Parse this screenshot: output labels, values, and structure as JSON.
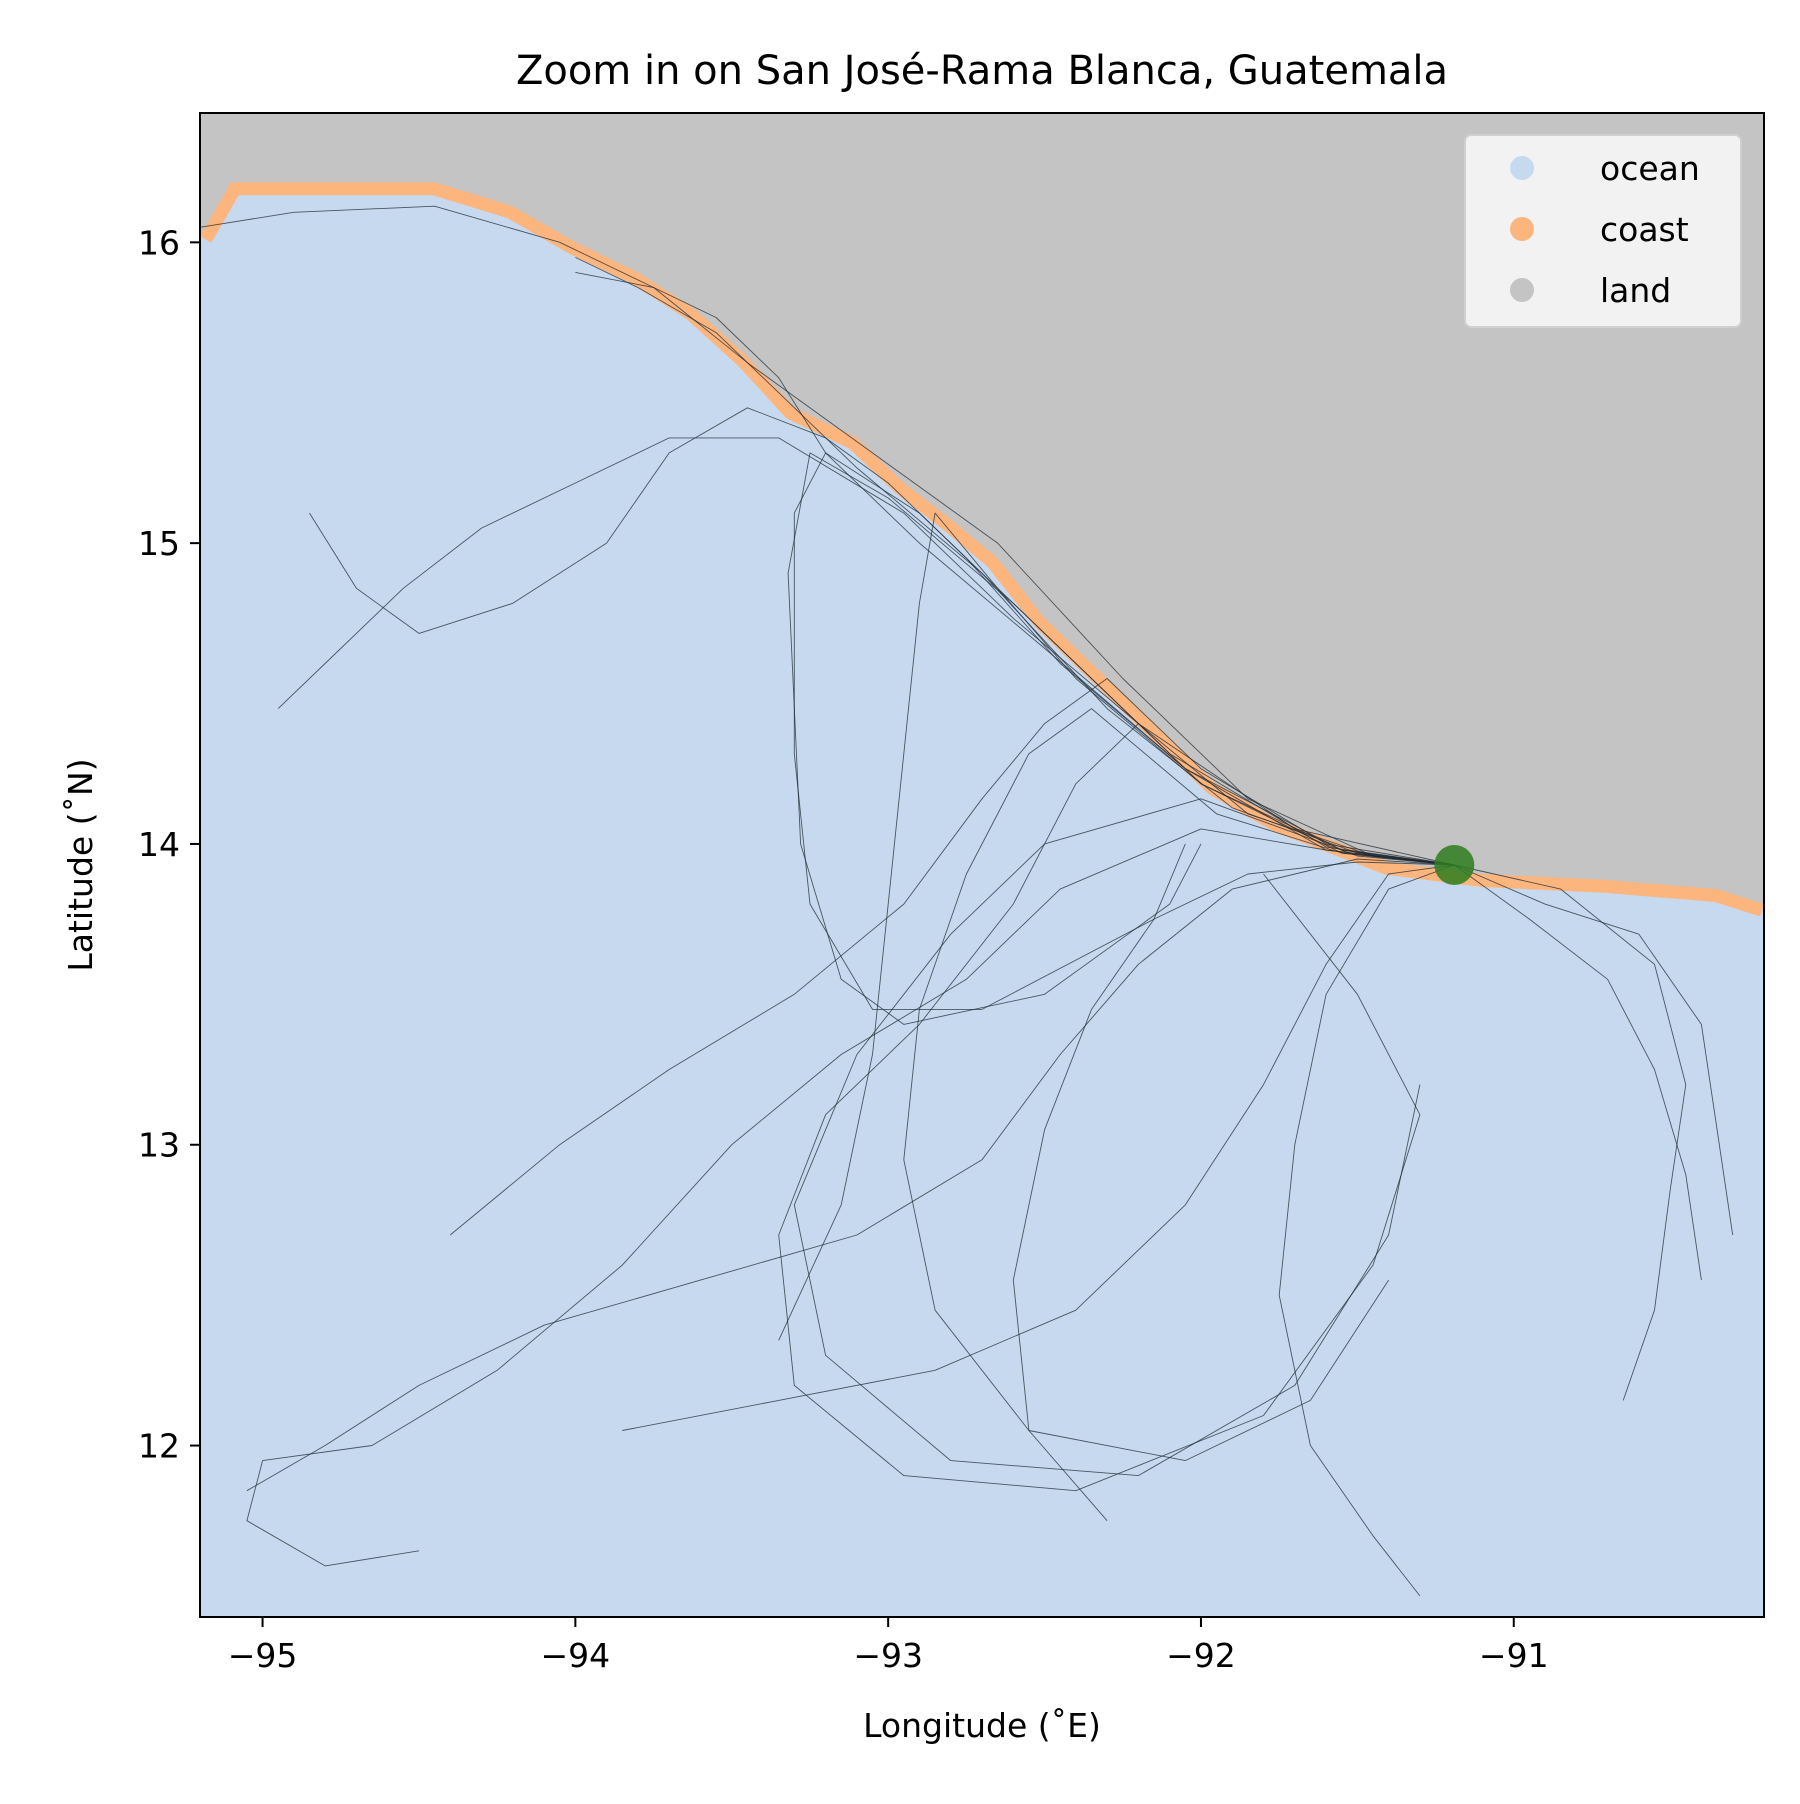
{
  "chart_data": {
    "type": "map",
    "title": "Zoom in on San José-Rama Blanca, Guatemala",
    "xlabel": "Longitude (˚E)",
    "ylabel": "Latitude (˚N)",
    "xlim": [
      -95.2,
      -90.2
    ],
    "ylim": [
      11.43,
      16.43
    ],
    "xticks": [
      -95,
      -94,
      -93,
      -92,
      -91
    ],
    "xtick_labels": [
      "−95",
      "−94",
      "−93",
      "−92",
      "−91"
    ],
    "yticks": [
      12,
      13,
      14,
      15,
      16
    ],
    "ytick_labels": [
      "12",
      "13",
      "14",
      "15",
      "16"
    ],
    "colors": {
      "ocean": "#c6d9ee",
      "coast": "#fdb57e",
      "land": "#c4c4c4",
      "trajectory": "#1f2a33",
      "marker": "#2e7d1e",
      "legend_bg": "#f2f2f2"
    },
    "legend": {
      "placement": "top-right",
      "entries": [
        {
          "label": "ocean",
          "color": "#c6d9ee"
        },
        {
          "label": "coast",
          "color": "#fdb57e"
        },
        {
          "label": "land",
          "color": "#c4c4c4"
        }
      ]
    },
    "coastline": [
      [
        -95.2,
        16.02
      ],
      [
        -95.1,
        16.2
      ],
      [
        -94.45,
        16.2
      ],
      [
        -94.2,
        16.12
      ],
      [
        -94.0,
        16.0
      ],
      [
        -93.8,
        15.9
      ],
      [
        -93.62,
        15.78
      ],
      [
        -93.45,
        15.62
      ],
      [
        -93.3,
        15.45
      ],
      [
        -93.1,
        15.35
      ],
      [
        -92.95,
        15.2
      ],
      [
        -92.8,
        15.08
      ],
      [
        -92.65,
        14.95
      ],
      [
        -92.5,
        14.75
      ],
      [
        -92.4,
        14.65
      ],
      [
        -92.25,
        14.5
      ],
      [
        -92.1,
        14.35
      ],
      [
        -91.95,
        14.2
      ],
      [
        -91.75,
        14.08
      ],
      [
        -91.55,
        14.0
      ],
      [
        -91.4,
        13.94
      ],
      [
        -91.1,
        13.9
      ],
      [
        -90.7,
        13.88
      ],
      [
        -90.35,
        13.85
      ],
      [
        -90.2,
        13.8
      ]
    ],
    "site": {
      "lon": -91.19,
      "lat": 13.93
    },
    "trajectories": [
      [
        [
          -91.19,
          13.93
        ],
        [
          -91.5,
          13.97
        ],
        [
          -91.9,
          14.12
        ],
        [
          -92.3,
          14.45
        ],
        [
          -92.7,
          14.9
        ],
        [
          -93.1,
          15.25
        ],
        [
          -93.35,
          15.5
        ],
        [
          -93.55,
          15.7
        ],
        [
          -93.8,
          15.85
        ],
        [
          -94.0,
          15.95
        ]
      ],
      [
        [
          -91.19,
          13.93
        ],
        [
          -91.55,
          13.98
        ],
        [
          -92.0,
          14.2
        ],
        [
          -92.5,
          14.7
        ],
        [
          -92.9,
          15.1
        ],
        [
          -93.2,
          15.3
        ],
        [
          -93.3,
          15.1
        ],
        [
          -93.3,
          14.3
        ],
        [
          -93.25,
          13.8
        ],
        [
          -93.05,
          13.45
        ],
        [
          -92.7,
          13.45
        ],
        [
          -92.15,
          13.75
        ],
        [
          -92.05,
          14.0
        ]
      ],
      [
        [
          -91.19,
          13.93
        ],
        [
          -91.6,
          13.99
        ],
        [
          -92.1,
          14.3
        ],
        [
          -92.6,
          14.8
        ],
        [
          -93.0,
          15.15
        ],
        [
          -93.25,
          15.3
        ],
        [
          -93.32,
          14.9
        ],
        [
          -93.28,
          14.0
        ],
        [
          -93.15,
          13.55
        ],
        [
          -92.95,
          13.4
        ],
        [
          -92.5,
          13.5
        ],
        [
          -92.1,
          13.8
        ],
        [
          -92.0,
          14.0
        ]
      ],
      [
        [
          -91.19,
          13.93
        ],
        [
          -91.45,
          13.96
        ],
        [
          -91.85,
          14.1
        ],
        [
          -92.2,
          14.4
        ],
        [
          -92.4,
          14.2
        ],
        [
          -92.6,
          13.8
        ],
        [
          -92.9,
          13.4
        ],
        [
          -93.2,
          13.1
        ],
        [
          -93.35,
          12.7
        ],
        [
          -93.3,
          12.2
        ],
        [
          -92.95,
          11.9
        ],
        [
          -92.4,
          11.85
        ],
        [
          -91.8,
          12.1
        ],
        [
          -91.45,
          12.6
        ],
        [
          -91.3,
          13.1
        ],
        [
          -91.5,
          13.5
        ],
        [
          -91.8,
          13.9
        ]
      ],
      [
        [
          -91.19,
          13.93
        ],
        [
          -91.5,
          13.96
        ],
        [
          -92.0,
          14.15
        ],
        [
          -92.5,
          14.0
        ],
        [
          -92.8,
          13.7
        ],
        [
          -93.1,
          13.3
        ],
        [
          -93.3,
          12.8
        ],
        [
          -93.2,
          12.3
        ],
        [
          -92.8,
          11.95
        ],
        [
          -92.2,
          11.9
        ],
        [
          -91.7,
          12.2
        ],
        [
          -91.4,
          12.7
        ],
        [
          -91.3,
          13.2
        ]
      ],
      [
        [
          -91.19,
          13.93
        ],
        [
          -91.6,
          13.98
        ],
        [
          -92.05,
          14.25
        ],
        [
          -92.45,
          14.6
        ],
        [
          -92.75,
          14.95
        ],
        [
          -93.0,
          15.2
        ],
        [
          -93.2,
          15.35
        ],
        [
          -93.45,
          15.45
        ],
        [
          -93.7,
          15.3
        ],
        [
          -93.9,
          15.0
        ],
        [
          -94.2,
          14.8
        ],
        [
          -94.5,
          14.7
        ],
        [
          -94.7,
          14.85
        ],
        [
          -94.85,
          15.1
        ]
      ],
      [
        [
          -91.19,
          13.93
        ],
        [
          -91.7,
          14.05
        ],
        [
          -92.2,
          14.4
        ],
        [
          -92.6,
          14.75
        ],
        [
          -92.95,
          15.1
        ],
        [
          -93.35,
          15.35
        ],
        [
          -93.7,
          15.35
        ],
        [
          -94.0,
          15.2
        ],
        [
          -94.3,
          15.05
        ],
        [
          -94.55,
          14.85
        ],
        [
          -94.8,
          14.6
        ],
        [
          -94.95,
          14.45
        ]
      ],
      [
        [
          -91.19,
          13.93
        ],
        [
          -91.5,
          13.95
        ],
        [
          -91.9,
          13.85
        ],
        [
          -92.2,
          13.6
        ],
        [
          -92.45,
          13.3
        ],
        [
          -92.7,
          12.95
        ],
        [
          -93.1,
          12.7
        ],
        [
          -93.6,
          12.55
        ],
        [
          -94.1,
          12.4
        ],
        [
          -94.5,
          12.2
        ],
        [
          -94.8,
          12.0
        ],
        [
          -95.05,
          11.85
        ]
      ],
      [
        [
          -91.19,
          13.93
        ],
        [
          -91.4,
          13.85
        ],
        [
          -91.6,
          13.5
        ],
        [
          -91.7,
          13.0
        ],
        [
          -91.75,
          12.5
        ],
        [
          -91.65,
          12.0
        ],
        [
          -91.45,
          11.7
        ],
        [
          -91.3,
          11.5
        ]
      ],
      [
        [
          -91.19,
          13.93
        ],
        [
          -91.55,
          13.97
        ],
        [
          -91.95,
          14.1
        ],
        [
          -92.35,
          14.45
        ],
        [
          -92.55,
          14.3
        ],
        [
          -92.75,
          13.9
        ],
        [
          -92.9,
          13.45
        ],
        [
          -92.95,
          12.95
        ],
        [
          -92.85,
          12.45
        ],
        [
          -92.55,
          12.05
        ],
        [
          -92.05,
          11.95
        ],
        [
          -91.65,
          12.15
        ],
        [
          -91.4,
          12.55
        ]
      ],
      [
        [
          -91.19,
          13.93
        ],
        [
          -90.9,
          13.8
        ],
        [
          -90.6,
          13.7
        ],
        [
          -90.4,
          13.4
        ],
        [
          -90.35,
          13.05
        ],
        [
          -90.3,
          12.7
        ]
      ],
      [
        [
          -91.19,
          13.93
        ],
        [
          -90.95,
          13.75
        ],
        [
          -90.7,
          13.55
        ],
        [
          -90.55,
          13.25
        ],
        [
          -90.45,
          12.9
        ],
        [
          -90.4,
          12.55
        ]
      ],
      [
        [
          -91.19,
          13.93
        ],
        [
          -91.45,
          13.96
        ],
        [
          -91.85,
          14.15
        ],
        [
          -92.25,
          14.55
        ],
        [
          -92.65,
          15.0
        ],
        [
          -93.05,
          15.3
        ],
        [
          -93.45,
          15.6
        ],
        [
          -93.75,
          15.85
        ],
        [
          -94.05,
          16.0
        ],
        [
          -94.45,
          16.12
        ],
        [
          -94.9,
          16.1
        ],
        [
          -95.2,
          16.05
        ]
      ],
      [
        [
          -91.19,
          13.93
        ],
        [
          -91.6,
          13.98
        ],
        [
          -92.0,
          14.05
        ],
        [
          -92.45,
          13.85
        ],
        [
          -92.75,
          13.55
        ],
        [
          -93.15,
          13.3
        ],
        [
          -93.5,
          13.0
        ],
        [
          -93.85,
          12.6
        ],
        [
          -94.25,
          12.25
        ],
        [
          -94.65,
          12.0
        ],
        [
          -95.0,
          11.95
        ],
        [
          -95.05,
          11.75
        ],
        [
          -94.8,
          11.6
        ],
        [
          -94.5,
          11.65
        ]
      ],
      [
        [
          -91.19,
          13.93
        ],
        [
          -91.5,
          13.94
        ],
        [
          -91.85,
          13.9
        ],
        [
          -92.15,
          13.75
        ],
        [
          -92.35,
          13.45
        ],
        [
          -92.5,
          13.05
        ],
        [
          -92.6,
          12.55
        ],
        [
          -92.55,
          12.05
        ],
        [
          -92.3,
          11.75
        ]
      ],
      [
        [
          -91.19,
          13.93
        ],
        [
          -91.55,
          13.97
        ],
        [
          -92.0,
          14.2
        ],
        [
          -92.4,
          14.55
        ],
        [
          -92.65,
          14.85
        ],
        [
          -92.85,
          15.1
        ],
        [
          -92.9,
          14.8
        ],
        [
          -92.95,
          14.3
        ],
        [
          -93.0,
          13.8
        ],
        [
          -93.05,
          13.3
        ],
        [
          -93.15,
          12.8
        ],
        [
          -93.35,
          12.35
        ]
      ],
      [
        [
          -91.19,
          13.93
        ],
        [
          -90.85,
          13.85
        ],
        [
          -90.55,
          13.6
        ],
        [
          -90.45,
          13.2
        ],
        [
          -90.5,
          12.85
        ],
        [
          -90.55,
          12.45
        ],
        [
          -90.65,
          12.15
        ]
      ],
      [
        [
          -91.19,
          13.93
        ],
        [
          -91.55,
          13.98
        ],
        [
          -92.05,
          14.25
        ],
        [
          -92.5,
          14.65
        ],
        [
          -92.9,
          15.0
        ],
        [
          -93.2,
          15.3
        ],
        [
          -93.35,
          15.55
        ],
        [
          -93.55,
          15.75
        ],
        [
          -93.75,
          15.85
        ],
        [
          -94.0,
          15.9
        ]
      ],
      [
        [
          -91.19,
          13.93
        ],
        [
          -91.6,
          14.0
        ],
        [
          -92.0,
          14.25
        ],
        [
          -92.3,
          14.55
        ],
        [
          -92.5,
          14.4
        ],
        [
          -92.7,
          14.15
        ],
        [
          -92.95,
          13.8
        ],
        [
          -93.3,
          13.5
        ],
        [
          -93.7,
          13.25
        ],
        [
          -94.05,
          13.0
        ],
        [
          -94.4,
          12.7
        ]
      ],
      [
        [
          -91.19,
          13.93
        ],
        [
          -91.4,
          13.9
        ],
        [
          -91.6,
          13.6
        ],
        [
          -91.8,
          13.2
        ],
        [
          -92.05,
          12.8
        ],
        [
          -92.4,
          12.45
        ],
        [
          -92.85,
          12.25
        ],
        [
          -93.35,
          12.15
        ],
        [
          -93.85,
          12.05
        ]
      ]
    ]
  }
}
